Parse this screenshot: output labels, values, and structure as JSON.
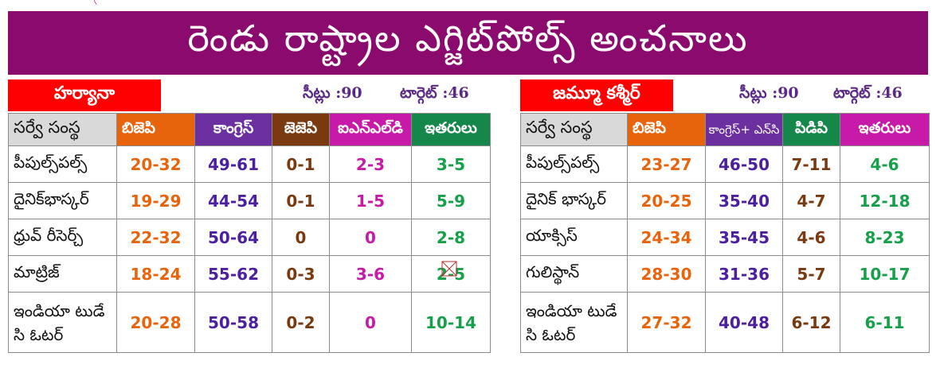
{
  "banner": {
    "title": "రెండు రాష్ట్రాల ఎగ్జిట్‌పోల్స్ అంచనాలు"
  },
  "haryana": {
    "region": "హర్యానా",
    "seats": "సీట్లు :90",
    "target": "టార్గెట్ :46",
    "headers": [
      "సర్వే సంస్థ",
      "బిజెపి",
      "కాంగ్రెస్",
      "జెజెపి",
      "ఐఎన్‌ఎల్‌డి",
      "ఇతరులు"
    ],
    "rows": [
      [
        "పీపుల్స్‌పల్స్",
        "20-32",
        "49-61",
        "0-1",
        "2-3",
        "3-5"
      ],
      [
        "దైనిక్‌భాస్కర్",
        "19-29",
        "44-54",
        "0-1",
        "1-5",
        "5-9"
      ],
      [
        "ధ్రువ్ రీసెర్చ్",
        "22-32",
        "50-64",
        "0",
        "0",
        "2-8"
      ],
      [
        "మాట్రిజ్",
        "18-24",
        "55-62",
        "0-3",
        "3-6",
        "2-5"
      ],
      [
        "ఇండియా టుడే సి ఓటర్",
        "20-28",
        "50-58",
        "0-2",
        "0",
        "10-14"
      ]
    ]
  },
  "jk": {
    "region": "జమ్మూ కశ్మీర్",
    "seats": "సీట్లు :90",
    "target": "టార్గెట్ :46",
    "headers": [
      "సర్వే సంస్థ",
      "బిజెపి",
      "కాంగ్రెస్+ ఎన్‌సి",
      "పిడిపి",
      "ఇతరులు"
    ],
    "rows": [
      [
        "పీపుల్స్‌పల్స్",
        "23-27",
        "46-50",
        "7-11",
        "4-6"
      ],
      [
        "దైనిక్ భాస్కర్",
        "20-25",
        "35-40",
        "4-7",
        "12-18"
      ],
      [
        "యాక్సిస్",
        "24-34",
        "35-45",
        "4-6",
        "8-23"
      ],
      [
        "గులిస్థాన్",
        "28-30",
        "31-36",
        "5-7",
        "10-17"
      ],
      [
        "ఇండియా టుడే సి ఓటర్",
        "27-32",
        "40-48",
        "6-12",
        "6-11"
      ]
    ]
  },
  "colors": {
    "banner": "#8b0a6d",
    "region_tag": "#ff0000",
    "bjp": "#e8640c",
    "congress": "#6b2fa0",
    "jjp": "#7a3a10",
    "inld": "#c81aa8",
    "others": "#16874a"
  }
}
